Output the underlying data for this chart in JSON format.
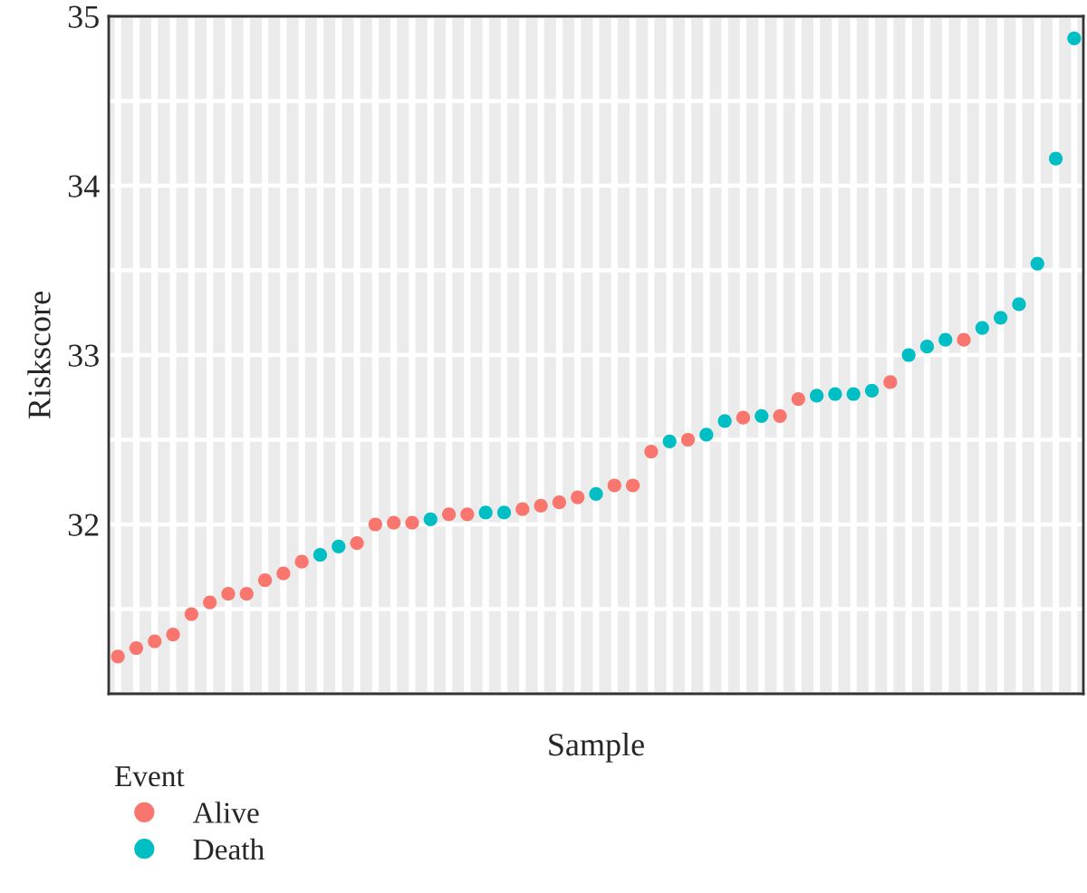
{
  "chart_data": {
    "type": "scatter",
    "xlabel": "Sample",
    "ylabel": "Riskscore",
    "legend_title": "Event",
    "categories": [
      null,
      null,
      null,
      null,
      null,
      null,
      null,
      null,
      null,
      null,
      null,
      null,
      null,
      null,
      null,
      null,
      null,
      null,
      null,
      null,
      null,
      null,
      null,
      null,
      null,
      null,
      null,
      null,
      null,
      null,
      null,
      null,
      null,
      null,
      null,
      null,
      null,
      null,
      null,
      null,
      null,
      null,
      null,
      null,
      null,
      null,
      null,
      null,
      null,
      null,
      null,
      null,
      null
    ],
    "series": [
      {
        "name": "Alive",
        "color": "#f8766d",
        "values": [
          31.22,
          31.27,
          31.31,
          31.35,
          31.47,
          31.54,
          31.59,
          31.59,
          31.67,
          31.71,
          31.78,
          null,
          null,
          31.89,
          32.0,
          32.01,
          32.01,
          null,
          32.06,
          32.06,
          null,
          null,
          32.09,
          32.11,
          32.13,
          32.16,
          null,
          32.23,
          32.23,
          32.43,
          null,
          32.5,
          null,
          null,
          32.63,
          null,
          32.64,
          32.74,
          null,
          null,
          null,
          null,
          32.84,
          null,
          null,
          null,
          33.09,
          null,
          null,
          null,
          null,
          null,
          null
        ]
      },
      {
        "name": "Death",
        "color": "#00bfc4",
        "values": [
          null,
          null,
          null,
          null,
          null,
          null,
          null,
          null,
          null,
          null,
          null,
          31.82,
          31.87,
          null,
          null,
          null,
          null,
          32.03,
          null,
          null,
          32.07,
          32.07,
          null,
          null,
          null,
          null,
          32.18,
          null,
          null,
          null,
          32.49,
          null,
          32.53,
          32.61,
          null,
          32.64,
          null,
          null,
          32.76,
          32.77,
          32.77,
          32.79,
          null,
          33.0,
          33.05,
          33.09,
          null,
          33.16,
          33.22,
          33.3,
          33.54,
          34.16,
          34.87
        ]
      }
    ],
    "ylim": [
      31.0,
      35.0
    ],
    "yticks": [
      32,
      33,
      34,
      35
    ],
    "grid": true,
    "legend": "bottom left",
    "marker": "circle"
  }
}
